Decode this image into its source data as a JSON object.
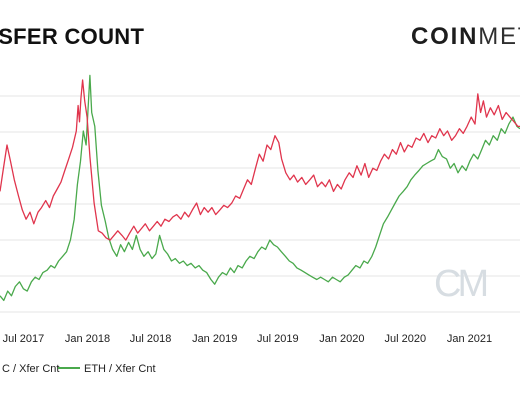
{
  "header": {
    "title": "NSFER COUNT",
    "brand_bold": "COIN",
    "brand_light": "METR"
  },
  "watermark": "CM",
  "colors": {
    "btc": "#e0354d",
    "eth": "#4aa94c",
    "grid": "#e5e5e5"
  },
  "chart_data": {
    "type": "line",
    "title": "NSFER COUNT",
    "xlabel": "",
    "ylabel": "",
    "grid": true,
    "legend": "bottom-left",
    "x_range": [
      "2017-04-25",
      "2021-05-26"
    ],
    "xticks": [
      {
        "label": "Jul 2017",
        "date": "2017-07-01"
      },
      {
        "label": "Jan 2018",
        "date": "2018-01-01"
      },
      {
        "label": "Jul 2018",
        "date": "2018-07-01"
      },
      {
        "label": "Jan 2019",
        "date": "2019-01-01"
      },
      {
        "label": "Jul 2019",
        "date": "2019-07-01"
      },
      {
        "label": "Jan 2020",
        "date": "2020-01-01"
      },
      {
        "label": "Jul 2020",
        "date": "2020-07-01"
      },
      {
        "label": "Jan 2021",
        "date": "2021-01-01"
      }
    ],
    "y_range": [
      0,
      100
    ],
    "series": [
      {
        "name": "C / Xfer Cnt",
        "color": "#e0354d",
        "points": [
          [
            "2017-04-25",
            52
          ],
          [
            "2017-05-04",
            61
          ],
          [
            "2017-05-15",
            72
          ],
          [
            "2017-05-25",
            65
          ],
          [
            "2017-06-05",
            57
          ],
          [
            "2017-06-17",
            50
          ],
          [
            "2017-06-28",
            44
          ],
          [
            "2017-07-09",
            40
          ],
          [
            "2017-07-20",
            43
          ],
          [
            "2017-07-31",
            38
          ],
          [
            "2017-08-12",
            43
          ],
          [
            "2017-08-22",
            45
          ],
          [
            "2017-09-03",
            48
          ],
          [
            "2017-09-14",
            45
          ],
          [
            "2017-09-25",
            50
          ],
          [
            "2017-10-06",
            53
          ],
          [
            "2017-10-17",
            56
          ],
          [
            "2017-10-28",
            61
          ],
          [
            "2017-11-08",
            66
          ],
          [
            "2017-11-19",
            71
          ],
          [
            "2017-11-30",
            78
          ],
          [
            "2017-12-05",
            89
          ],
          [
            "2017-12-09",
            82
          ],
          [
            "2017-12-13",
            92
          ],
          [
            "2017-12-18",
            100
          ],
          [
            "2017-12-24",
            91
          ],
          [
            "2017-12-31",
            84
          ],
          [
            "2018-01-08",
            67
          ],
          [
            "2018-01-20",
            47
          ],
          [
            "2018-02-01",
            35
          ],
          [
            "2018-02-12",
            34
          ],
          [
            "2018-02-23",
            32
          ],
          [
            "2018-03-07",
            31
          ],
          [
            "2018-03-18",
            33
          ],
          [
            "2018-03-29",
            35
          ],
          [
            "2018-04-10",
            33
          ],
          [
            "2018-04-21",
            31
          ],
          [
            "2018-05-02",
            34
          ],
          [
            "2018-05-14",
            37
          ],
          [
            "2018-05-25",
            34
          ],
          [
            "2018-06-05",
            36
          ],
          [
            "2018-06-16",
            38
          ],
          [
            "2018-06-28",
            35
          ],
          [
            "2018-07-09",
            37
          ],
          [
            "2018-07-20",
            39
          ],
          [
            "2018-07-31",
            37
          ],
          [
            "2018-08-11",
            40
          ],
          [
            "2018-08-23",
            39
          ],
          [
            "2018-09-03",
            41
          ],
          [
            "2018-09-14",
            42
          ],
          [
            "2018-09-26",
            40
          ],
          [
            "2018-10-07",
            43
          ],
          [
            "2018-10-18",
            41
          ],
          [
            "2018-10-29",
            44
          ],
          [
            "2018-11-10",
            47
          ],
          [
            "2018-11-21",
            42
          ],
          [
            "2018-12-02",
            45
          ],
          [
            "2018-12-13",
            43
          ],
          [
            "2018-12-24",
            45
          ],
          [
            "2019-01-04",
            42
          ],
          [
            "2019-01-16",
            44
          ],
          [
            "2019-01-27",
            46
          ],
          [
            "2019-02-07",
            45
          ],
          [
            "2019-02-19",
            47
          ],
          [
            "2019-03-02",
            50
          ],
          [
            "2019-03-14",
            49
          ],
          [
            "2019-03-25",
            53
          ],
          [
            "2019-04-05",
            57
          ],
          [
            "2019-04-16",
            55
          ],
          [
            "2019-04-28",
            62
          ],
          [
            "2019-05-09",
            68
          ],
          [
            "2019-05-20",
            65
          ],
          [
            "2019-05-31",
            72
          ],
          [
            "2019-06-11",
            70
          ],
          [
            "2019-06-23",
            76
          ],
          [
            "2019-07-04",
            73
          ],
          [
            "2019-07-12",
            66
          ],
          [
            "2019-07-24",
            60
          ],
          [
            "2019-08-05",
            57
          ],
          [
            "2019-08-16",
            59
          ],
          [
            "2019-08-27",
            56
          ],
          [
            "2019-09-08",
            58
          ],
          [
            "2019-09-19",
            55
          ],
          [
            "2019-10-01",
            57
          ],
          [
            "2019-10-12",
            59
          ],
          [
            "2019-10-23",
            54
          ],
          [
            "2019-11-04",
            56
          ],
          [
            "2019-11-15",
            54
          ],
          [
            "2019-11-26",
            57
          ],
          [
            "2019-12-08",
            52
          ],
          [
            "2019-12-19",
            55
          ],
          [
            "2019-12-30",
            53
          ],
          [
            "2020-01-10",
            57
          ],
          [
            "2020-01-22",
            60
          ],
          [
            "2020-02-02",
            58
          ],
          [
            "2020-02-13",
            63
          ],
          [
            "2020-02-25",
            59
          ],
          [
            "2020-03-07",
            64
          ],
          [
            "2020-03-18",
            58
          ],
          [
            "2020-03-30",
            62
          ],
          [
            "2020-04-10",
            61
          ],
          [
            "2020-04-21",
            65
          ],
          [
            "2020-05-02",
            68
          ],
          [
            "2020-05-14",
            66
          ],
          [
            "2020-05-25",
            70
          ],
          [
            "2020-06-05",
            68
          ],
          [
            "2020-06-17",
            73
          ],
          [
            "2020-06-28",
            69
          ],
          [
            "2020-07-09",
            72
          ],
          [
            "2020-07-20",
            71
          ],
          [
            "2020-08-01",
            75
          ],
          [
            "2020-08-12",
            74
          ],
          [
            "2020-08-23",
            77
          ],
          [
            "2020-09-04",
            73
          ],
          [
            "2020-09-15",
            76
          ],
          [
            "2020-09-26",
            75
          ],
          [
            "2020-10-08",
            79
          ],
          [
            "2020-10-19",
            76
          ],
          [
            "2020-10-30",
            78
          ],
          [
            "2020-11-11",
            74
          ],
          [
            "2020-11-22",
            76
          ],
          [
            "2020-12-03",
            79
          ],
          [
            "2020-12-14",
            77
          ],
          [
            "2020-12-25",
            80
          ],
          [
            "2021-01-06",
            84
          ],
          [
            "2021-01-17",
            81
          ],
          [
            "2021-01-25",
            94
          ],
          [
            "2021-02-02",
            86
          ],
          [
            "2021-02-10",
            91
          ],
          [
            "2021-02-19",
            84
          ],
          [
            "2021-03-02",
            88
          ],
          [
            "2021-03-13",
            85
          ],
          [
            "2021-03-25",
            89
          ],
          [
            "2021-04-05",
            83
          ],
          [
            "2021-04-16",
            86
          ],
          [
            "2021-04-27",
            84
          ],
          [
            "2021-05-09",
            82
          ],
          [
            "2021-05-20",
            80
          ],
          [
            "2021-05-26",
            80
          ]
        ]
      },
      {
        "name": "ETH / Xfer Cnt",
        "color": "#4aa94c",
        "points": [
          [
            "2017-04-25",
            7
          ],
          [
            "2017-05-06",
            5
          ],
          [
            "2017-05-17",
            9
          ],
          [
            "2017-05-28",
            7
          ],
          [
            "2017-06-08",
            11
          ],
          [
            "2017-06-20",
            13
          ],
          [
            "2017-07-01",
            10
          ],
          [
            "2017-07-12",
            9
          ],
          [
            "2017-07-24",
            13
          ],
          [
            "2017-08-04",
            15
          ],
          [
            "2017-08-15",
            14
          ],
          [
            "2017-08-26",
            17
          ],
          [
            "2017-09-07",
            18
          ],
          [
            "2017-09-18",
            20
          ],
          [
            "2017-09-29",
            19
          ],
          [
            "2017-10-10",
            22
          ],
          [
            "2017-10-22",
            24
          ],
          [
            "2017-11-02",
            26
          ],
          [
            "2017-11-13",
            31
          ],
          [
            "2017-11-24",
            40
          ],
          [
            "2017-12-03",
            55
          ],
          [
            "2017-12-12",
            65
          ],
          [
            "2017-12-20",
            78
          ],
          [
            "2017-12-28",
            72
          ],
          [
            "2018-01-04",
            91
          ],
          [
            "2018-01-08",
            102
          ],
          [
            "2018-01-13",
            86
          ],
          [
            "2018-01-22",
            80
          ],
          [
            "2018-01-31",
            61
          ],
          [
            "2018-02-10",
            46
          ],
          [
            "2018-02-21",
            39
          ],
          [
            "2018-03-03",
            32
          ],
          [
            "2018-03-14",
            27
          ],
          [
            "2018-03-26",
            24
          ],
          [
            "2018-04-06",
            29
          ],
          [
            "2018-04-17",
            26
          ],
          [
            "2018-04-29",
            30
          ],
          [
            "2018-05-10",
            27
          ],
          [
            "2018-05-21",
            33
          ],
          [
            "2018-06-01",
            27
          ],
          [
            "2018-06-12",
            24
          ],
          [
            "2018-06-24",
            26
          ],
          [
            "2018-07-05",
            23
          ],
          [
            "2018-07-16",
            25
          ],
          [
            "2018-07-27",
            33
          ],
          [
            "2018-08-08",
            27
          ],
          [
            "2018-08-19",
            25
          ],
          [
            "2018-08-30",
            22
          ],
          [
            "2018-09-10",
            23
          ],
          [
            "2018-09-22",
            21
          ],
          [
            "2018-10-03",
            22
          ],
          [
            "2018-10-14",
            20
          ],
          [
            "2018-10-25",
            21
          ],
          [
            "2018-11-06",
            19
          ],
          [
            "2018-11-17",
            20
          ],
          [
            "2018-11-28",
            18
          ],
          [
            "2018-12-09",
            17
          ],
          [
            "2018-12-21",
            14
          ],
          [
            "2019-01-01",
            12
          ],
          [
            "2019-01-12",
            15
          ],
          [
            "2019-01-23",
            17
          ],
          [
            "2019-02-04",
            16
          ],
          [
            "2019-02-15",
            19
          ],
          [
            "2019-02-26",
            17
          ],
          [
            "2019-03-09",
            20
          ],
          [
            "2019-03-21",
            19
          ],
          [
            "2019-04-01",
            22
          ],
          [
            "2019-04-12",
            24
          ],
          [
            "2019-04-24",
            23
          ],
          [
            "2019-05-05",
            26
          ],
          [
            "2019-05-16",
            28
          ],
          [
            "2019-05-27",
            27
          ],
          [
            "2019-06-08",
            31
          ],
          [
            "2019-06-19",
            29
          ],
          [
            "2019-06-30",
            28
          ],
          [
            "2019-07-11",
            26
          ],
          [
            "2019-07-23",
            24
          ],
          [
            "2019-08-03",
            22
          ],
          [
            "2019-08-14",
            21
          ],
          [
            "2019-08-25",
            19
          ],
          [
            "2019-09-06",
            18
          ],
          [
            "2019-09-17",
            17
          ],
          [
            "2019-09-28",
            16
          ],
          [
            "2019-10-09",
            15
          ],
          [
            "2019-10-21",
            14
          ],
          [
            "2019-11-01",
            15
          ],
          [
            "2019-11-12",
            14
          ],
          [
            "2019-11-23",
            13
          ],
          [
            "2019-12-05",
            15
          ],
          [
            "2019-12-16",
            14
          ],
          [
            "2019-12-27",
            13
          ],
          [
            "2020-01-08",
            15
          ],
          [
            "2020-01-19",
            16
          ],
          [
            "2020-01-30",
            18
          ],
          [
            "2020-02-10",
            20
          ],
          [
            "2020-02-22",
            19
          ],
          [
            "2020-03-04",
            22
          ],
          [
            "2020-03-15",
            21
          ],
          [
            "2020-03-27",
            24
          ],
          [
            "2020-04-07",
            28
          ],
          [
            "2020-04-18",
            33
          ],
          [
            "2020-04-29",
            38
          ],
          [
            "2020-05-11",
            41
          ],
          [
            "2020-05-22",
            44
          ],
          [
            "2020-06-02",
            47
          ],
          [
            "2020-06-13",
            50
          ],
          [
            "2020-06-25",
            52
          ],
          [
            "2020-07-06",
            54
          ],
          [
            "2020-07-17",
            57
          ],
          [
            "2020-07-28",
            59
          ],
          [
            "2020-08-09",
            61
          ],
          [
            "2020-08-20",
            63
          ],
          [
            "2020-08-31",
            64
          ],
          [
            "2020-09-11",
            65
          ],
          [
            "2020-09-23",
            66
          ],
          [
            "2020-10-04",
            70
          ],
          [
            "2020-10-15",
            67
          ],
          [
            "2020-10-27",
            66
          ],
          [
            "2020-11-07",
            62
          ],
          [
            "2020-11-18",
            64
          ],
          [
            "2020-11-29",
            60
          ],
          [
            "2020-12-11",
            63
          ],
          [
            "2020-12-22",
            61
          ],
          [
            "2021-01-02",
            65
          ],
          [
            "2021-01-13",
            68
          ],
          [
            "2021-01-25",
            66
          ],
          [
            "2021-02-05",
            70
          ],
          [
            "2021-02-16",
            74
          ],
          [
            "2021-02-27",
            72
          ],
          [
            "2021-03-10",
            76
          ],
          [
            "2021-03-22",
            74
          ],
          [
            "2021-04-02",
            79
          ],
          [
            "2021-04-13",
            77
          ],
          [
            "2021-04-24",
            81
          ],
          [
            "2021-05-06",
            84
          ],
          [
            "2021-05-17",
            80
          ],
          [
            "2021-05-26",
            79
          ]
        ]
      }
    ]
  }
}
